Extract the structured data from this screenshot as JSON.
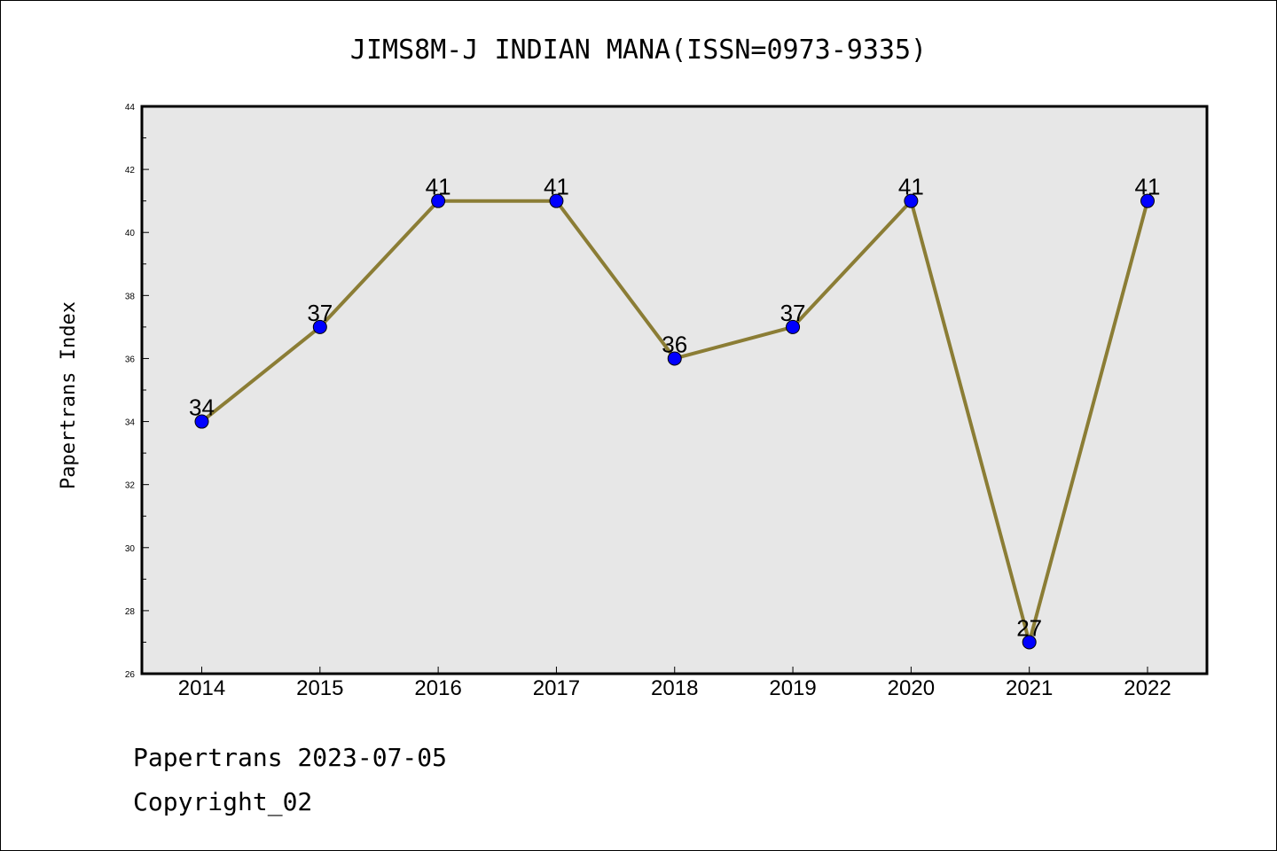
{
  "chart_data": {
    "type": "line",
    "title": "JIMS8M-J INDIAN MANA(ISSN=0973-9335)",
    "xlabel": "",
    "ylabel": "Papertrans Index",
    "categories": [
      "2014",
      "2015",
      "2016",
      "2017",
      "2018",
      "2019",
      "2020",
      "2021",
      "2022"
    ],
    "values": [
      34,
      37,
      41,
      41,
      36,
      37,
      41,
      27,
      41
    ],
    "ylim": [
      26,
      44
    ],
    "yticks": [
      26,
      28,
      30,
      32,
      34,
      36,
      38,
      40,
      42,
      44
    ],
    "grid": false,
    "line_color": "#8B7D35",
    "marker_color": "#0000FF",
    "plot_background": "#E7E7E7"
  },
  "footer": {
    "line1": "Papertrans 2023-07-05",
    "line2": "Copyright_02"
  }
}
